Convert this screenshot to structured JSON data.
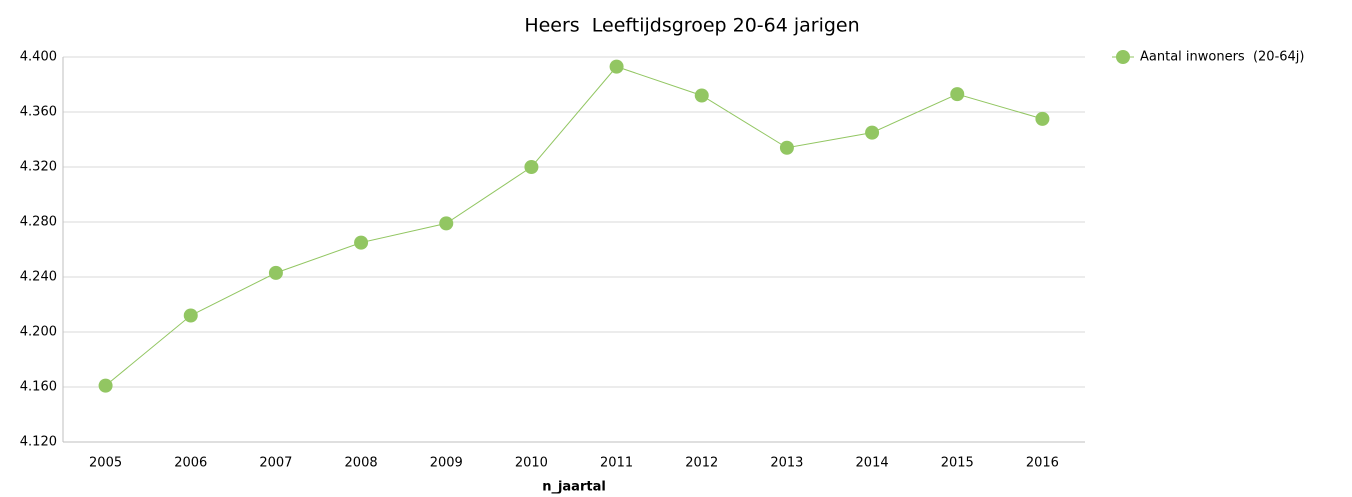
{
  "chart_data": {
    "type": "line",
    "title": "Heers  Leeftijdsgroep 20-64 jarigen",
    "x_label": "n_jaartal",
    "categories": [
      "2005",
      "2006",
      "2007",
      "2008",
      "2009",
      "2010",
      "2011",
      "2012",
      "2013",
      "2014",
      "2015",
      "2016"
    ],
    "series": [
      {
        "name": "Aantal inwoners  (20-64j)",
        "color": "#92c662",
        "values": [
          4161,
          4212,
          4243,
          4265,
          4279,
          4320,
          4393,
          4372,
          4334,
          4345,
          4373,
          4355
        ]
      }
    ],
    "ylim": [
      4120,
      4400
    ],
    "yticks": [
      {
        "value": 4120,
        "label": "4.120"
      },
      {
        "value": 4160,
        "label": "4.160"
      },
      {
        "value": 4200,
        "label": "4.200"
      },
      {
        "value": 4240,
        "label": "4.240"
      },
      {
        "value": 4280,
        "label": "4.280"
      },
      {
        "value": 4320,
        "label": "4.320"
      },
      {
        "value": 4360,
        "label": "4.360"
      },
      {
        "value": 4400,
        "label": "4.400"
      }
    ],
    "grid": true,
    "legend": "top-right"
  }
}
